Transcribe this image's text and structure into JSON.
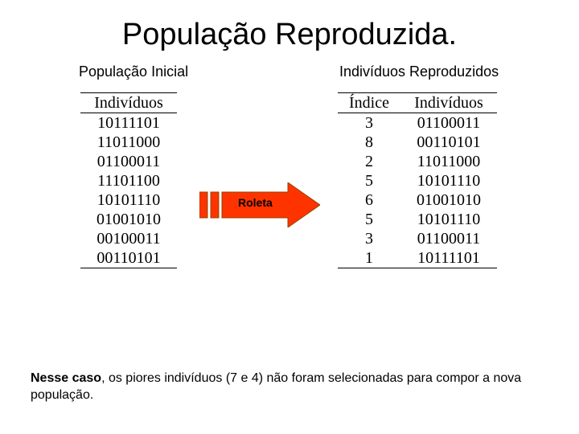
{
  "title": "População Reproduzida.",
  "labels": {
    "left": "População Inicial",
    "right": "Indivíduos Reproduzidos"
  },
  "left_table": {
    "header": "Indivíduos",
    "rows": [
      "10111101",
      "11011000",
      "01100011",
      "11101100",
      "10101110",
      "01001010",
      "00100011",
      "00110101"
    ]
  },
  "right_table": {
    "headers": [
      "Índice",
      "Indivíduos"
    ],
    "rows": [
      [
        "3",
        "01100011"
      ],
      [
        "8",
        "00110101"
      ],
      [
        "2",
        "11011000"
      ],
      [
        "5",
        "10101110"
      ],
      [
        "6",
        "01001010"
      ],
      [
        "5",
        "10101110"
      ],
      [
        "3",
        "01100011"
      ],
      [
        "1",
        "10111101"
      ]
    ]
  },
  "arrow": {
    "label": "Roleta",
    "fill": "#ff3300",
    "stroke": "#8a4a00"
  },
  "footer": {
    "bold": "Nesse caso",
    "rest": ", os piores indivíduos (7 e 4) não foram selecionadas para compor a nova população."
  },
  "colors": {
    "background": "#ffffff",
    "text": "#000000"
  }
}
